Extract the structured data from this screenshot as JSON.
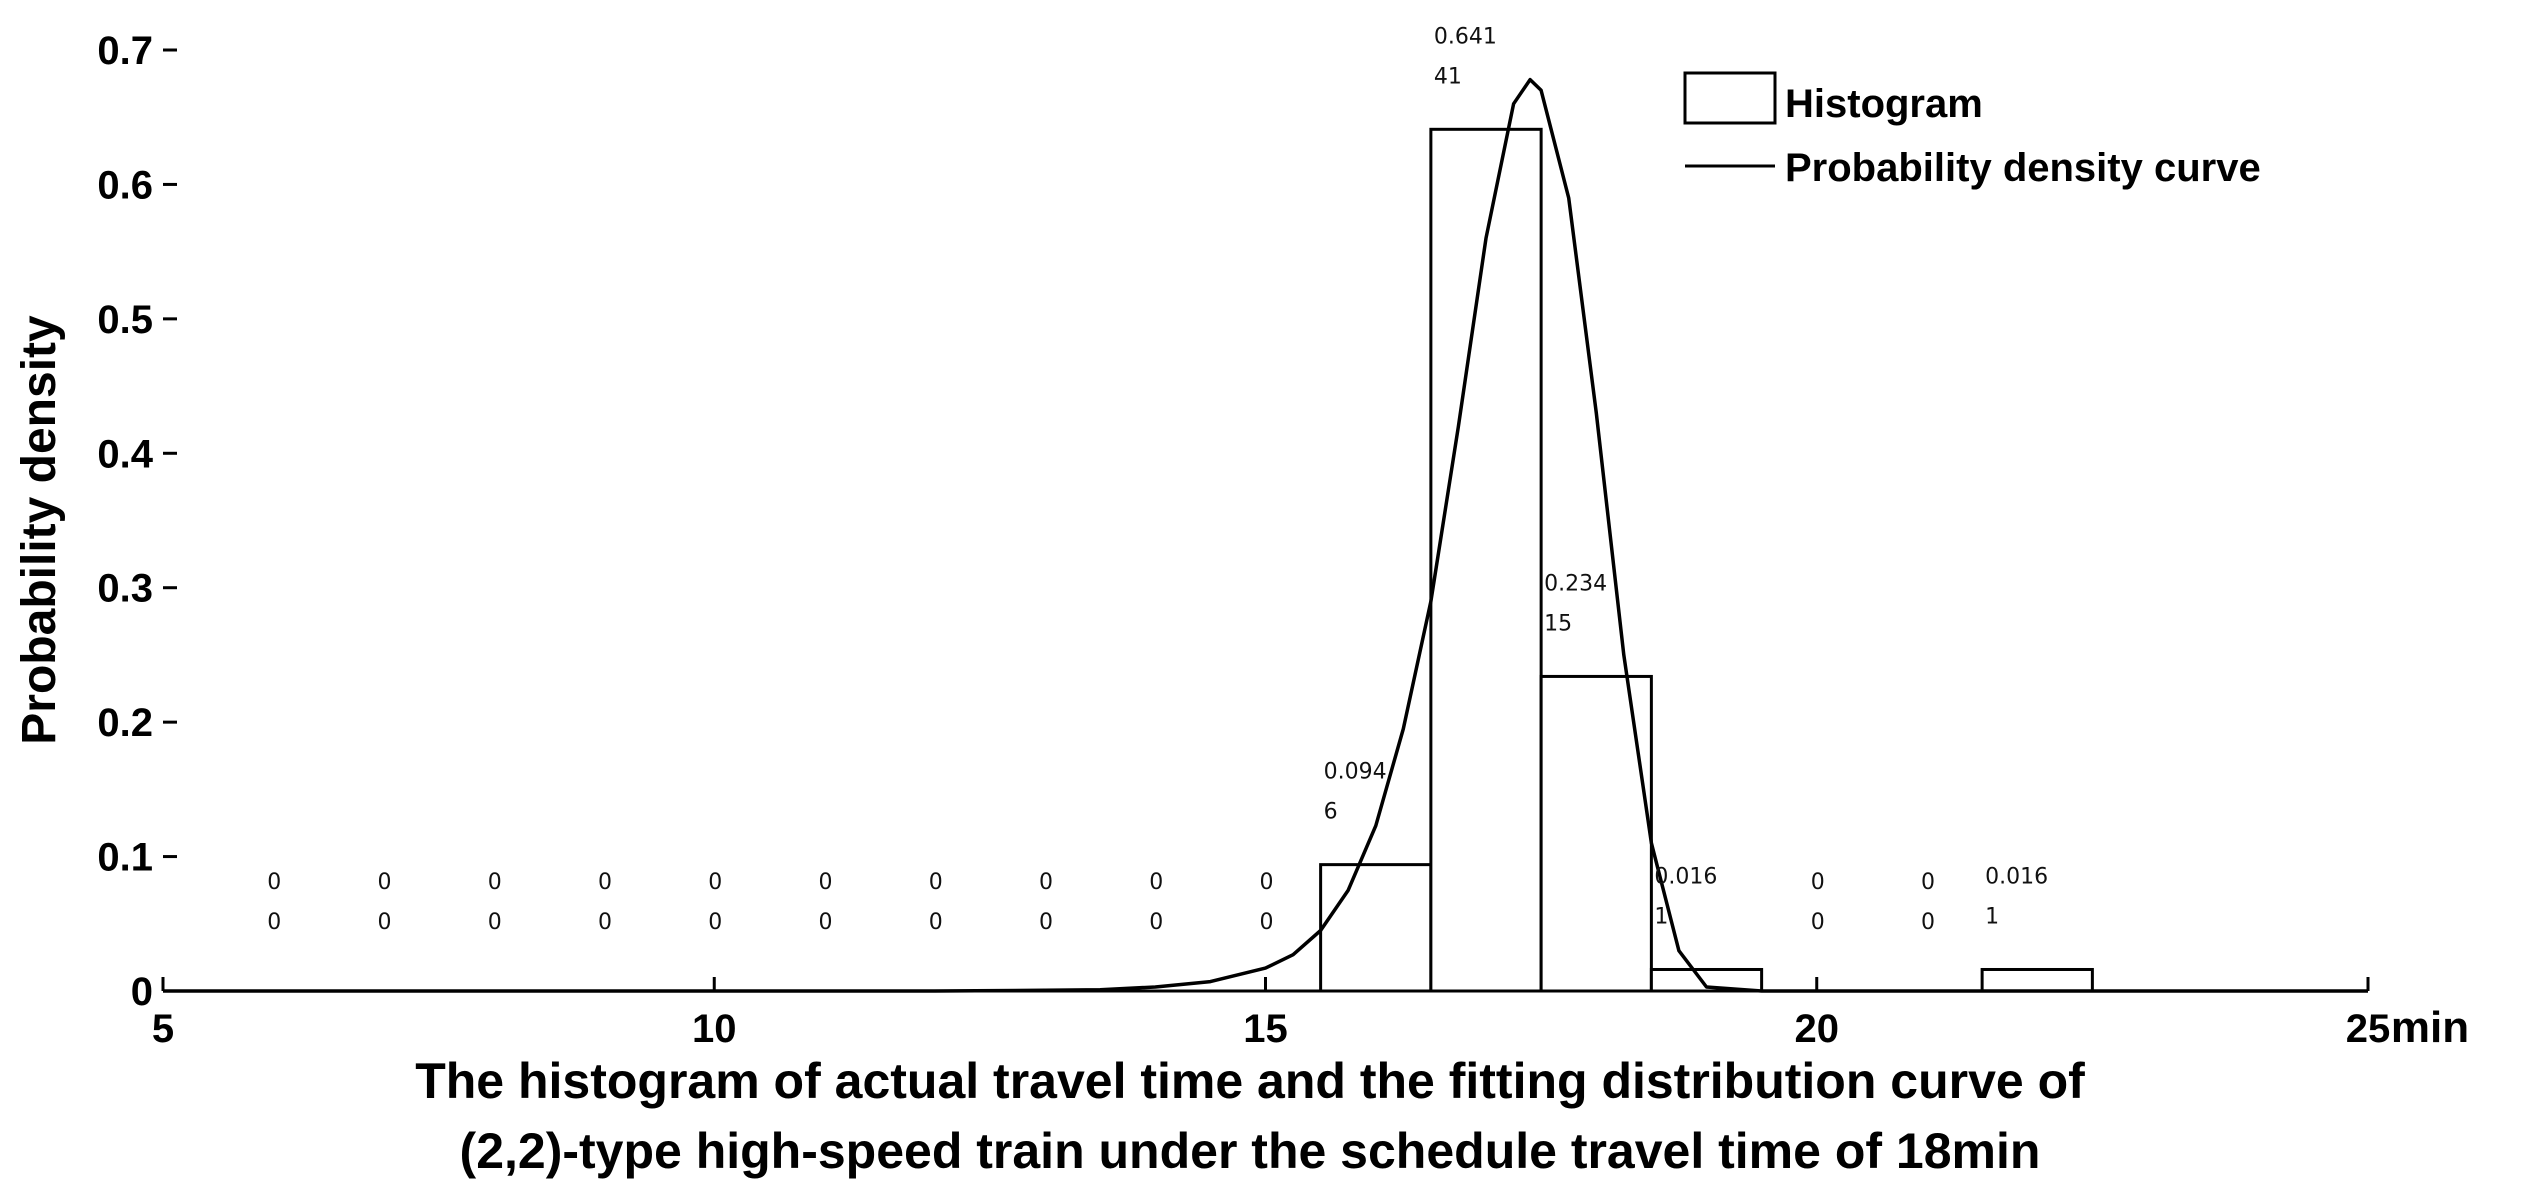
{
  "chart_data": {
    "type": "bar",
    "title": "",
    "caption_lines": [
      "The histogram of actual travel time and the fitting distribution curve of",
      "(2,2)-type high-speed train under the schedule travel time of 18min"
    ],
    "xlabel": "min",
    "ylabel": "Probability density",
    "xlim": [
      5,
      25
    ],
    "ylim": [
      0,
      0.7
    ],
    "x_ticks": [
      "5",
      "10",
      "15",
      "20",
      "25"
    ],
    "y_ticks": [
      "0",
      "0.1",
      "0.2",
      "0.3",
      "0.4",
      "0.5",
      "0.6",
      "0.7"
    ],
    "legend": {
      "position": "top-right",
      "histogram_label": "Histogram",
      "curve_label": "Probability density curve"
    },
    "bin_width": 1,
    "bins": [
      {
        "center": 6,
        "value": 0,
        "label_top": "0",
        "label_bottom": "0"
      },
      {
        "center": 7,
        "value": 0,
        "label_top": "0",
        "label_bottom": "0"
      },
      {
        "center": 8,
        "value": 0,
        "label_top": "0",
        "label_bottom": "0"
      },
      {
        "center": 9,
        "value": 0,
        "label_top": "0",
        "label_bottom": "0"
      },
      {
        "center": 10,
        "value": 0,
        "label_top": "0",
        "label_bottom": "0"
      },
      {
        "center": 11,
        "value": 0,
        "label_top": "0",
        "label_bottom": "0"
      },
      {
        "center": 12,
        "value": 0,
        "label_top": "0",
        "label_bottom": "0"
      },
      {
        "center": 13,
        "value": 0,
        "label_top": "0",
        "label_bottom": "0"
      },
      {
        "center": 14,
        "value": 0,
        "label_top": "0",
        "label_bottom": "0"
      },
      {
        "center": 15,
        "value": 0,
        "label_top": "0",
        "label_bottom": "0"
      },
      {
        "center": 16,
        "value": 0.094,
        "label_top": "0.094",
        "label_bottom": "6"
      },
      {
        "center": 17,
        "value": 0.641,
        "label_top": "0.641",
        "label_bottom": "41"
      },
      {
        "center": 18,
        "value": 0.234,
        "label_top": "0.234",
        "label_bottom": "15"
      },
      {
        "center": 19,
        "value": 0.016,
        "label_top": "0.016",
        "label_bottom": "1"
      },
      {
        "center": 20,
        "value": 0,
        "label_top": "0",
        "label_bottom": "0"
      },
      {
        "center": 21,
        "value": 0,
        "label_top": "0",
        "label_bottom": "0"
      },
      {
        "center": 22,
        "value": 0.016,
        "label_top": "0.016",
        "label_bottom": "1"
      }
    ],
    "curve": {
      "x": [
        5,
        12,
        13,
        13.5,
        14,
        14.5,
        15,
        15.25,
        15.5,
        15.75,
        16,
        16.25,
        16.5,
        16.75,
        17,
        17.25,
        17.4,
        17.5,
        17.75,
        18,
        18.25,
        18.5,
        18.75,
        19,
        19.5,
        25
      ],
      "y": [
        0,
        0,
        0.0005,
        0.001,
        0.003,
        0.007,
        0.017,
        0.027,
        0.045,
        0.075,
        0.123,
        0.195,
        0.29,
        0.42,
        0.56,
        0.66,
        0.678,
        0.67,
        0.59,
        0.43,
        0.25,
        0.11,
        0.03,
        0.003,
        0,
        0
      ]
    }
  }
}
